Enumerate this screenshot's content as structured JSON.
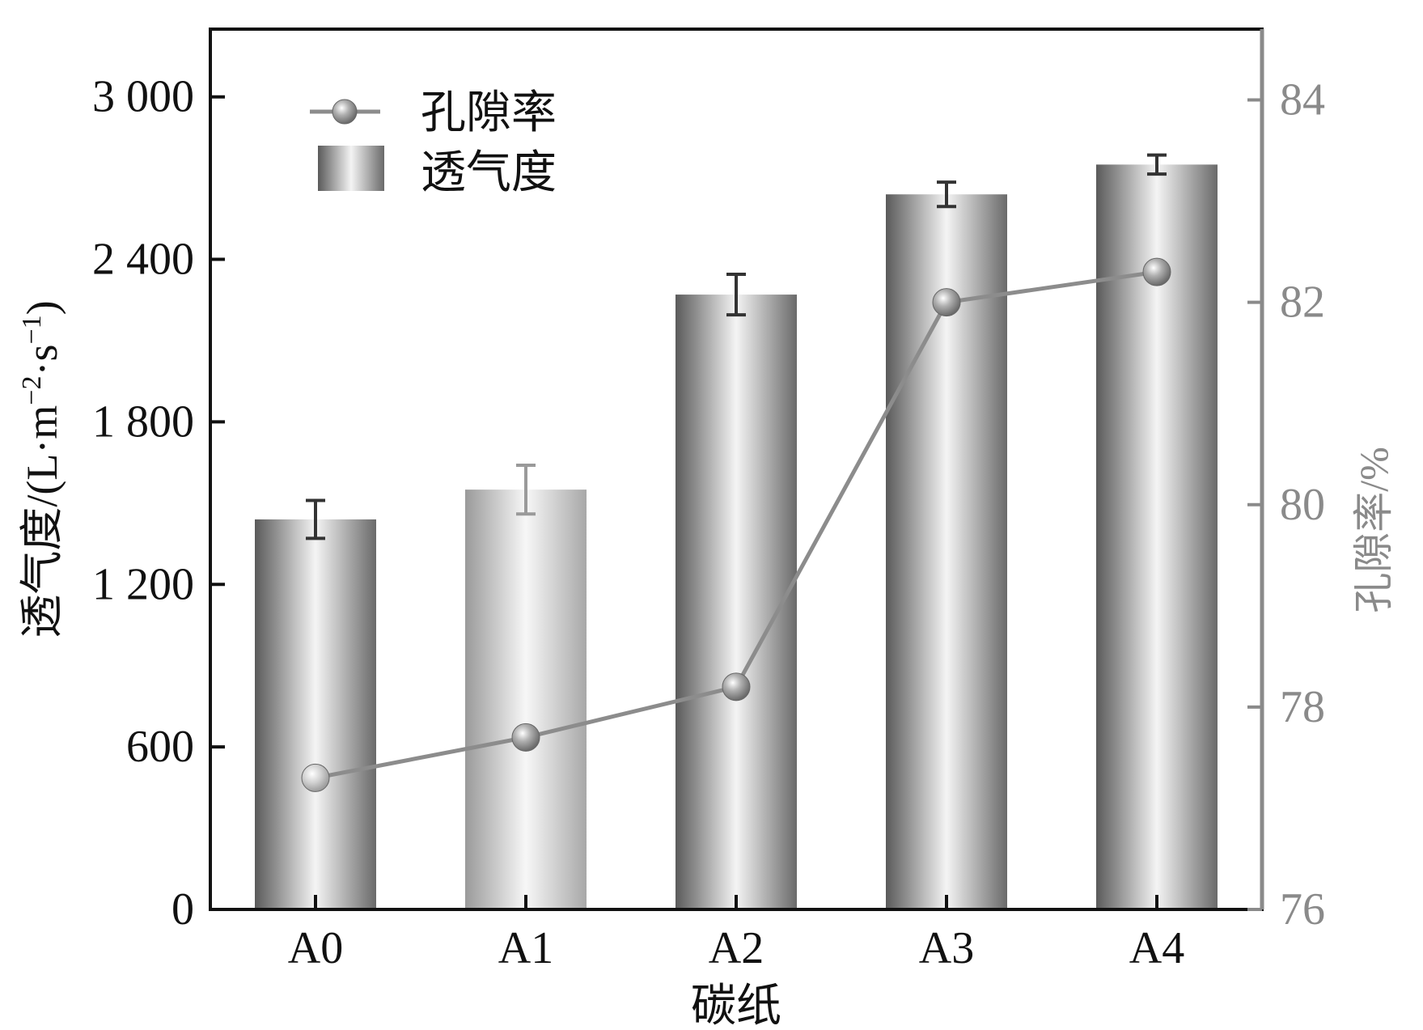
{
  "chart_data": {
    "type": "bar",
    "categories": [
      "A0",
      "A1",
      "A2",
      "A3",
      "A4"
    ],
    "xlabel": "碳纸",
    "ylabel_left": {
      "main": "透气度/(L·m",
      "sup1": "−2",
      "mid": "·s",
      "sup2": "−1",
      "end": ")"
    },
    "ylabel_right": "孔隙率/%",
    "yticks_left": [
      "0",
      "600",
      "1 200",
      "1 800",
      "2 400",
      "3 000"
    ],
    "yticks_left_values": [
      0,
      600,
      1200,
      1800,
      2400,
      3000
    ],
    "yticks_right": [
      "76",
      "78",
      "80",
      "82",
      "84"
    ],
    "yticks_right_values": [
      76,
      78,
      80,
      82,
      84
    ],
    "ylim_left": [
      0,
      3250
    ],
    "ylim_right": [
      76,
      84.7
    ],
    "series": [
      {
        "name": "透气度",
        "type": "bar",
        "axis": "left",
        "values": [
          1440,
          1550,
          2270,
          2640,
          2750
        ],
        "errors": [
          70,
          90,
          75,
          45,
          35
        ]
      },
      {
        "name": "孔隙率",
        "type": "line",
        "axis": "right",
        "values": [
          77.3,
          77.7,
          78.2,
          82.0,
          82.3
        ]
      }
    ],
    "legend": {
      "placement": "top-left",
      "items": [
        {
          "label": "孔隙率",
          "kind": "line"
        },
        {
          "label": "透气度",
          "kind": "bar"
        }
      ]
    },
    "colors": {
      "axis": "#111111",
      "right_axis": "#8a8a8a",
      "line": "#8c8c8c",
      "bar_dark": "#5a5a5a",
      "bar_light": "#f4f4f4"
    }
  }
}
